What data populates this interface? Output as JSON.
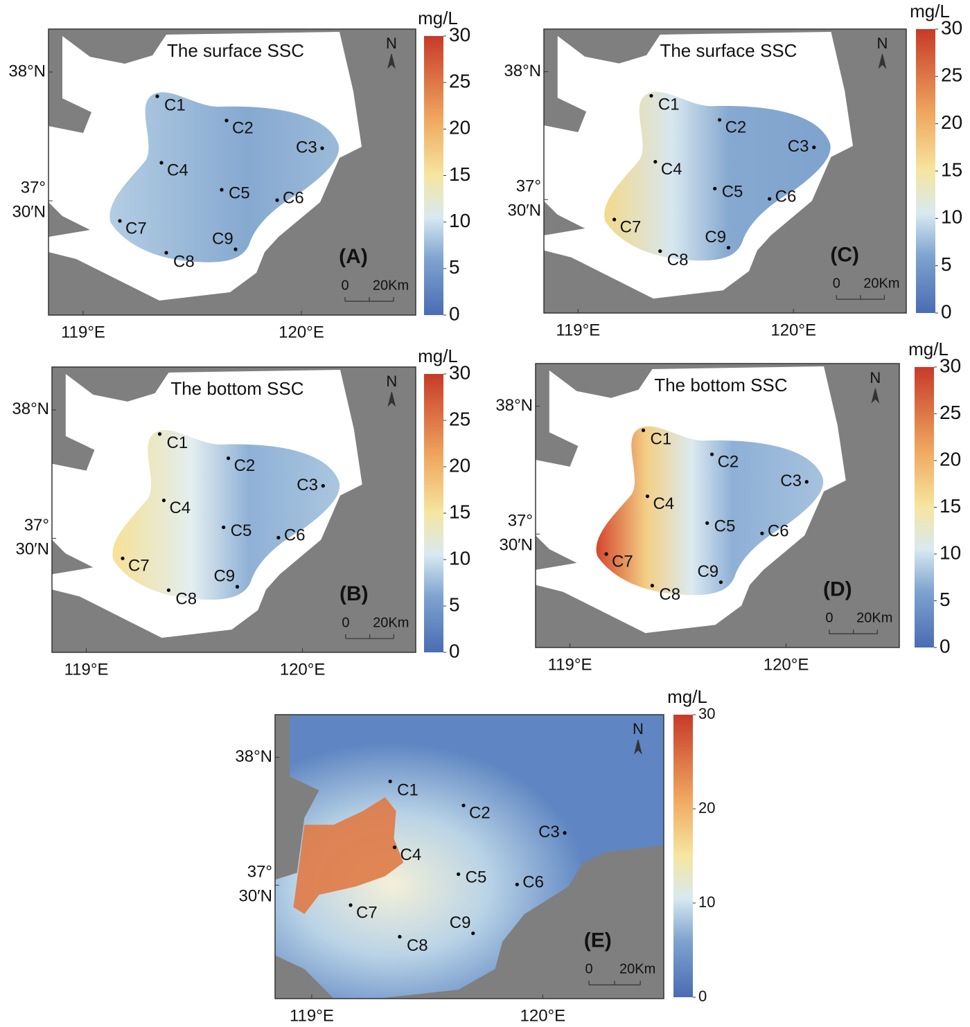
{
  "unit": "mg/L",
  "north": "N",
  "stations": [
    "C1",
    "C2",
    "C3",
    "C4",
    "C5",
    "C6",
    "C7",
    "C8",
    "C9"
  ],
  "panels": [
    {
      "title": "The surface SSC",
      "label": "(A)",
      "x_labels": [
        "119°E",
        "120°E"
      ],
      "y_labels": [
        "38°N",
        "37°",
        "30′N"
      ],
      "scale_labels": [
        "0",
        "20Km"
      ],
      "colorbar_ticks": [
        0,
        5,
        10,
        15,
        20,
        25,
        30
      ]
    },
    {
      "title": "The bottom SSC",
      "label": "(B)",
      "x_labels": [
        "119°E",
        "120°E"
      ],
      "y_labels": [
        "38°N",
        "37°",
        "30′N"
      ],
      "scale_labels": [
        "0",
        "20Km"
      ],
      "colorbar_ticks": [
        0,
        5,
        10,
        15,
        20,
        25,
        30
      ]
    },
    {
      "title": "The surface SSC",
      "label": "(C)",
      "x_labels": [
        "119°E",
        "120°E"
      ],
      "y_labels": [
        "38°N",
        "37°",
        "30′N"
      ],
      "scale_labels": [
        "0",
        "20Km"
      ],
      "colorbar_ticks": [
        0,
        5,
        10,
        15,
        20,
        25,
        30
      ]
    },
    {
      "title": "The bottom SSC",
      "label": "(D)",
      "x_labels": [
        "119°E",
        "120°E"
      ],
      "y_labels": [
        "38°N",
        "37°",
        "30′N"
      ],
      "scale_labels": [
        "0",
        "20Km"
      ],
      "colorbar_ticks": [
        0,
        5,
        10,
        15,
        20,
        25,
        30
      ]
    },
    {
      "label": "(E)",
      "x_labels": [
        "119°E",
        "120°E"
      ],
      "y_labels": [
        "38°N",
        "37°",
        "30′N"
      ],
      "scale_labels": [
        "0",
        "20Km"
      ],
      "colorbar_ticks": [
        0,
        10,
        20,
        30
      ]
    }
  ]
}
